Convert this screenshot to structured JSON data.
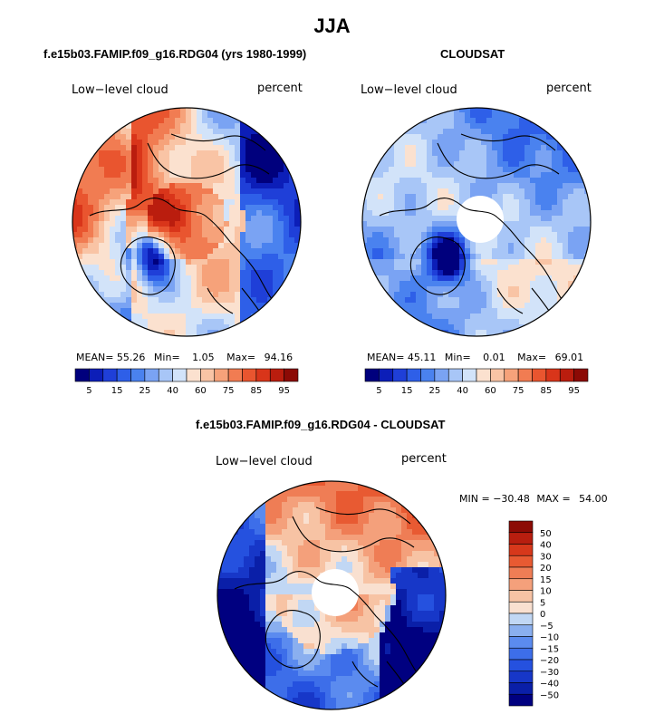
{
  "title": "JJA",
  "colors": {
    "abs_scale": [
      "#00007d",
      "#0c1eb8",
      "#1f3fd8",
      "#2e5fe8",
      "#4a82ef",
      "#7aa3f3",
      "#a8c6f7",
      "#d2e3f9",
      "#fbe1cf",
      "#f9c4a5",
      "#f6a27a",
      "#f17c52",
      "#e9552f",
      "#d9351a",
      "#ba1d0e",
      "#8c0a05"
    ],
    "diff_scale": [
      "#000080",
      "#0a1fa8",
      "#1737c8",
      "#2551df",
      "#3d6ee9",
      "#5b8bef",
      "#8aafef",
      "#c1d7f4",
      "#f9e0d0",
      "#f7c3a4",
      "#f4a07b",
      "#ef7d55",
      "#e85a32",
      "#d7381b",
      "#b81e0f",
      "#8c0b05"
    ]
  },
  "panels": [
    {
      "title": "f.e15b03.FAMIP.f09_g16.RDG04 (yrs 1980-1999)",
      "left_label": "Low−level cloud",
      "right_label": "percent",
      "stats": {
        "mean_label": "MEAN=",
        "mean": "55.26",
        "min_label": "Min=",
        "min": "1.05",
        "max_label": "Max=",
        "max": "94.16"
      },
      "bar_ticks": [
        "5",
        "15",
        "25",
        "40",
        "60",
        "75",
        "85",
        "95"
      ],
      "field": {
        "type": "model",
        "mean": 55.26,
        "min": 1.05,
        "max": 94.16
      }
    },
    {
      "title": "CLOUDSAT",
      "left_label": "Low−level cloud",
      "right_label": "percent",
      "stats": {
        "mean_label": "MEAN=",
        "mean": "45.11",
        "min_label": "Min=",
        "min": "0.01",
        "max_label": "Max=",
        "max": "69.01"
      },
      "bar_ticks": [
        "5",
        "15",
        "25",
        "40",
        "60",
        "75",
        "85",
        "95"
      ],
      "field": {
        "type": "obs",
        "mean": 45.11,
        "min": 0.01,
        "max": 69.01,
        "polar_gap": true
      }
    },
    {
      "title": "f.e15b03.FAMIP.f09_g16.RDG04 - CLOUDSAT",
      "left_label": "Low−level cloud",
      "right_label": "percent",
      "minmax": {
        "min_label": "MIN =",
        "min": "−30.48",
        "max_label": "MAX =",
        "max": "54.00"
      },
      "bar_ticks": [
        "50",
        "40",
        "30",
        "20",
        "15",
        "10",
        "5",
        "0",
        "−5",
        "−10",
        "−15",
        "−20",
        "−30",
        "−40",
        "−50"
      ],
      "field": {
        "type": "diff",
        "min": -30.48,
        "max": 54.0,
        "polar_gap": true
      }
    }
  ]
}
